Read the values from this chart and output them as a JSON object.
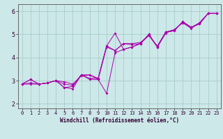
{
  "title": "",
  "xlabel": "Windchill (Refroidissement éolien,°C)",
  "ylabel": "",
  "bg_color": "#cce8e8",
  "line_color": "#aa00aa",
  "grid_color": "#aacccc",
  "spine_color": "#888888",
  "xlim": [
    -0.5,
    23.5
  ],
  "ylim": [
    1.8,
    6.3
  ],
  "xticks": [
    0,
    1,
    2,
    3,
    4,
    5,
    6,
    7,
    8,
    9,
    10,
    11,
    12,
    13,
    14,
    15,
    16,
    17,
    18,
    19,
    20,
    21,
    22,
    23
  ],
  "yticks": [
    2,
    3,
    4,
    5,
    6
  ],
  "lines": [
    [
      2.85,
      3.05,
      2.85,
      2.9,
      3.0,
      2.95,
      2.85,
      3.2,
      3.25,
      3.05,
      4.45,
      4.3,
      4.6,
      4.6,
      4.65,
      4.95,
      4.45,
      5.05,
      5.2,
      5.5,
      5.25,
      5.5,
      5.9,
      5.9
    ],
    [
      2.85,
      3.05,
      2.85,
      2.9,
      3.0,
      2.85,
      2.8,
      3.25,
      3.25,
      3.1,
      4.5,
      4.3,
      4.6,
      4.55,
      4.6,
      4.95,
      4.5,
      5.1,
      5.2,
      5.5,
      5.3,
      5.5,
      5.9,
      5.9
    ],
    [
      2.85,
      2.9,
      2.85,
      2.9,
      3.0,
      2.7,
      2.75,
      3.25,
      3.1,
      3.1,
      4.5,
      5.05,
      4.35,
      4.45,
      4.6,
      5.0,
      4.45,
      5.1,
      5.15,
      5.55,
      5.3,
      5.45,
      5.9,
      5.9
    ],
    [
      2.85,
      2.85,
      2.85,
      2.9,
      3.0,
      2.7,
      2.65,
      3.25,
      3.05,
      3.05,
      2.45,
      4.2,
      4.35,
      4.45,
      4.6,
      5.0,
      4.45,
      5.1,
      5.15,
      5.55,
      5.3,
      5.45,
      5.9,
      5.9
    ]
  ],
  "tick_fontsize": 5.0,
  "xlabel_fontsize": 5.5,
  "marker_size": 2.0,
  "linewidth": 0.7
}
